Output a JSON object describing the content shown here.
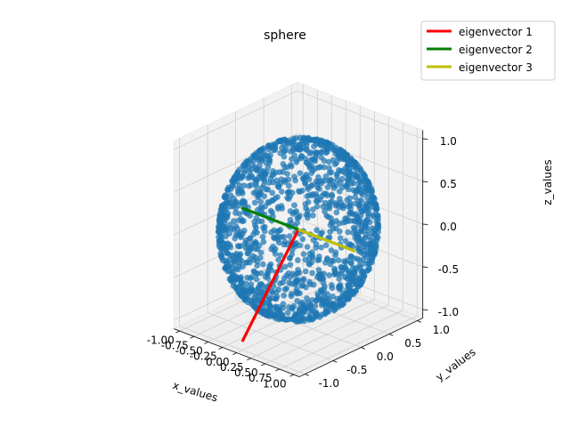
{
  "chart_data": {
    "type": "scatter",
    "projection": "3d",
    "title": "sphere",
    "xlabel": "x_values",
    "ylabel": "y_values",
    "zlabel": "z_values",
    "x_ticks": [
      "-1.00",
      "-0.75",
      "-0.50",
      "-0.25",
      "0.00",
      "0.25",
      "0.50",
      "0.75",
      "1.00"
    ],
    "x_tick_values": [
      -1.0,
      -0.75,
      -0.5,
      -0.25,
      0.0,
      0.25,
      0.5,
      0.75,
      1.0
    ],
    "y_ticks": [
      "-1.0",
      "-0.5",
      "0.0",
      "0.5",
      "1.0"
    ],
    "y_tick_values": [
      -1.0,
      -0.5,
      0.0,
      0.5,
      1.0
    ],
    "z_ticks": [
      "-1.0",
      "-0.5",
      "0.0",
      "0.5",
      "1.0"
    ],
    "z_tick_values": [
      -1.0,
      -0.5,
      0.0,
      0.5,
      1.0
    ],
    "xlim": [
      -1.1,
      1.1
    ],
    "ylim": [
      -1.1,
      1.1
    ],
    "zlim": [
      -1.1,
      1.1
    ],
    "grid": true,
    "legend_position": "top-right",
    "scatter": {
      "description": "points sampled on the surface of a unit sphere",
      "radius": 1.0,
      "point_count": 1500,
      "color": "#1f77b4"
    },
    "series": [
      {
        "name": "eigenvector 1",
        "color": "#ff0000",
        "start": [
          0,
          0,
          0
        ],
        "end": [
          0,
          -1,
          -1
        ]
      },
      {
        "name": "eigenvector 2",
        "color": "#008000",
        "start": [
          0,
          0,
          0
        ],
        "end": [
          -1,
          0,
          0
        ]
      },
      {
        "name": "eigenvector 3",
        "color": "#bfbf00",
        "start": [
          0,
          0,
          0
        ],
        "end": [
          1,
          0,
          0
        ]
      }
    ]
  }
}
